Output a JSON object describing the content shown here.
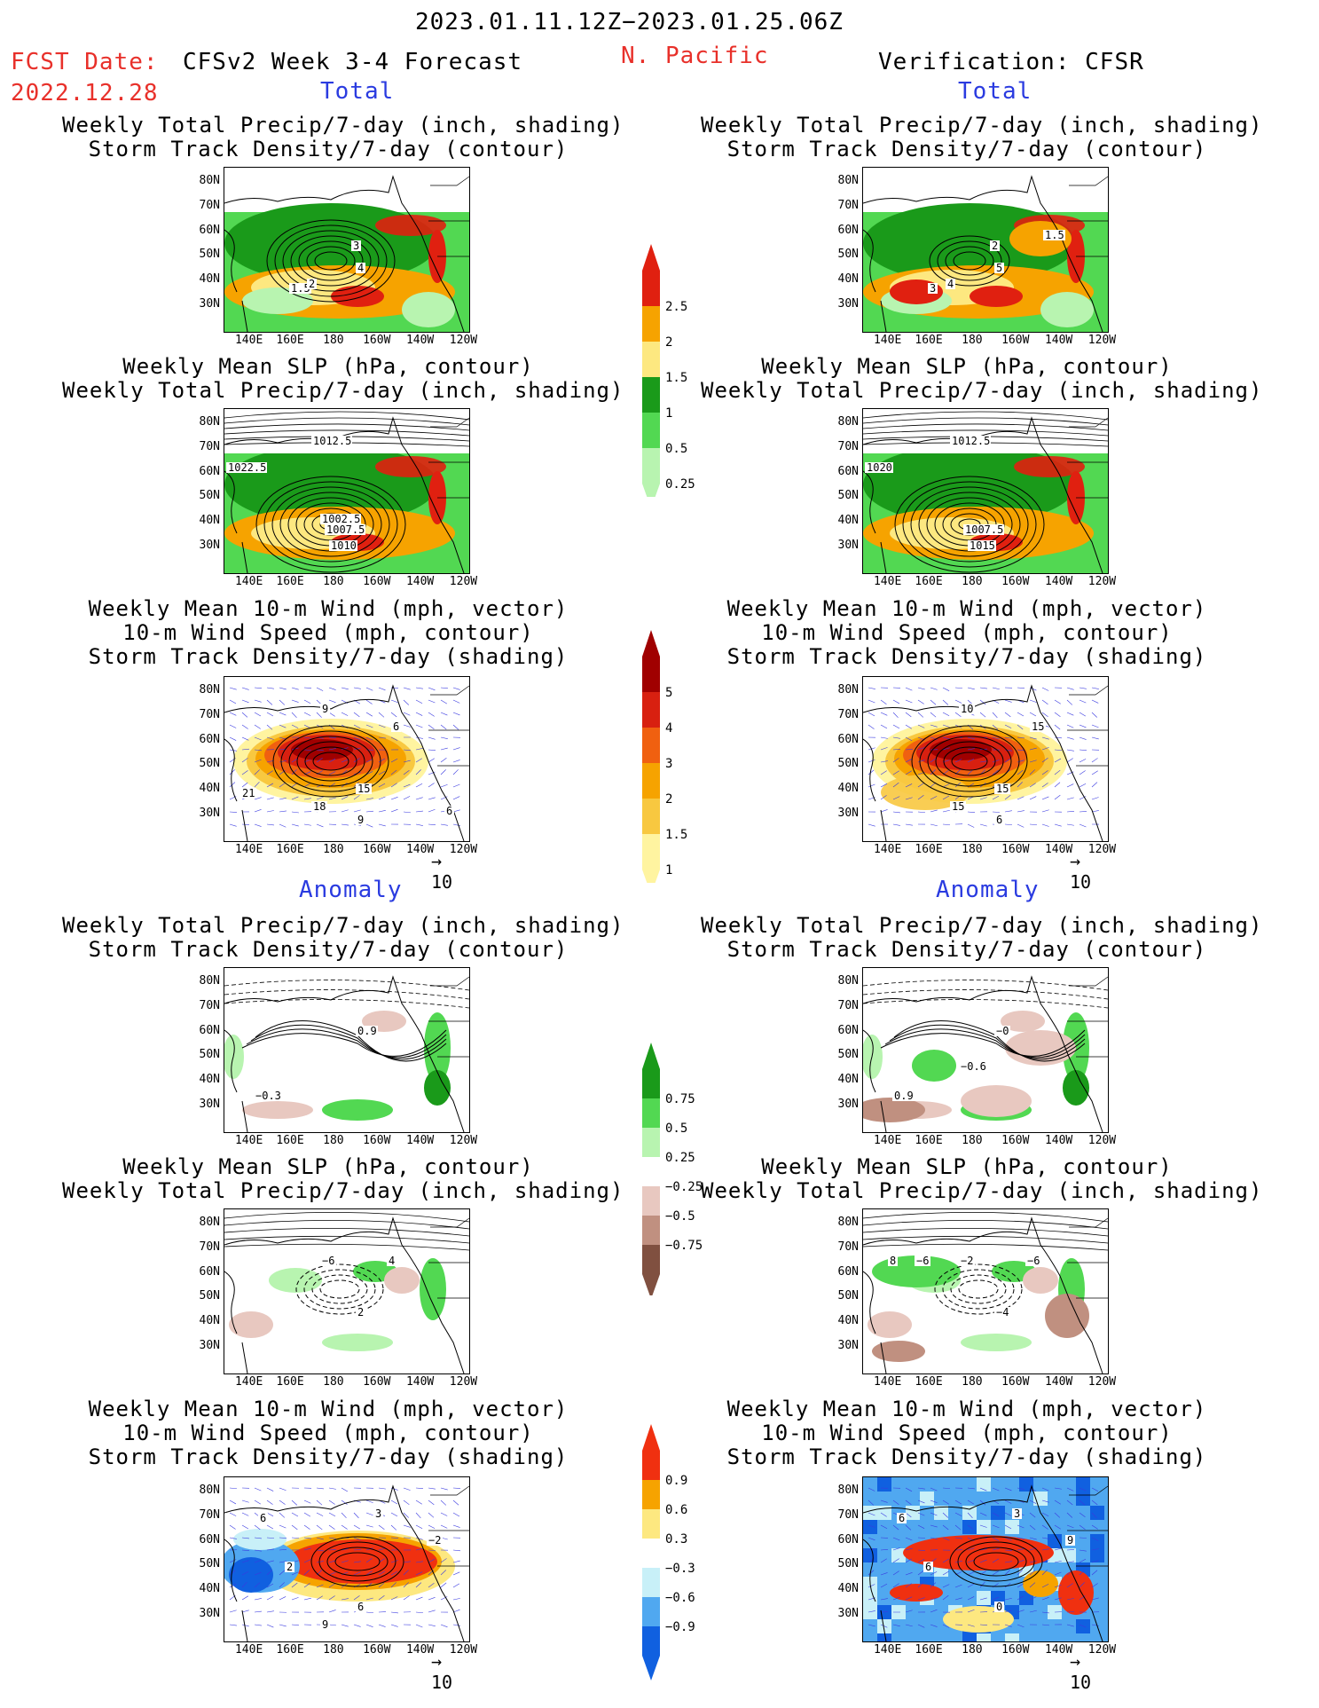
{
  "header": {
    "date_range": "2023.01.11.12Z−2023.01.25.06Z",
    "region": "N. Pacific",
    "fcst_label": "FCST Date:",
    "fcst_date": "2022.12.28",
    "model": "CFSv2 Week 3-4 Forecast",
    "verification": "Verification: CFSR"
  },
  "sections": {
    "total": "Total",
    "anomaly": "Anomaly"
  },
  "titles": {
    "precip_storm": [
      "Weekly Total Precip/7-day (inch, shading)",
      "Storm Track Density/7-day (contour)"
    ],
    "slp_precip": [
      "Weekly Mean SLP (hPa, contour)",
      "Weekly Total Precip/7-day (inch, shading)"
    ],
    "wind_storm": [
      "Weekly Mean 10-m Wind (mph, vector)",
      "10-m Wind Speed (mph, contour)",
      "Storm Track Density/7-day (shading)"
    ]
  },
  "axes": {
    "lat_labels": [
      "80N",
      "70N",
      "60N",
      "50N",
      "40N",
      "30N"
    ],
    "lon_labels": [
      "140E",
      "160E",
      "180",
      "160W",
      "140W",
      "120W"
    ]
  },
  "vector_ref": "10",
  "colorbars": {
    "precip_total": {
      "labels": [
        "2.5",
        "2",
        "1.5",
        "1",
        "0.5",
        "0.25"
      ],
      "colors": [
        "#e02010",
        "#f6a300",
        "#fde880",
        "#1a9a1a",
        "#52d852",
        "#b8f4b0"
      ]
    },
    "storm_total": {
      "labels": [
        "5",
        "4",
        "3",
        "2",
        "1.5",
        "1"
      ],
      "colors": [
        "#a00000",
        "#d82010",
        "#f06010",
        "#f6a300",
        "#f8c840",
        "#fff4a0"
      ]
    },
    "precip_anom": {
      "labels": [
        "0.75",
        "0.5",
        "0.25",
        "−0.25",
        "−0.5",
        "−0.75"
      ],
      "colors": [
        "#1a9a1a",
        "#52d852",
        "#b8f4b0",
        "#ffffff",
        "#e8c8c0",
        "#c09080",
        "#805040"
      ]
    },
    "storm_anom": {
      "labels": [
        "0.9",
        "0.6",
        "0.3",
        "−0.3",
        "−0.6",
        "−0.9"
      ],
      "colors": [
        "#f03010",
        "#f6a300",
        "#fde880",
        "#ffffff",
        "#c8f0f8",
        "#50a8f0",
        "#1060e0"
      ]
    }
  },
  "contour_labels": {
    "p1": [
      "4",
      "3",
      "1.5",
      "2"
    ],
    "p2": [
      "1012.5",
      "1022.5",
      "1007.5",
      "1010",
      "1002.5"
    ],
    "p3": [
      "9",
      "6",
      "15",
      "18",
      "9",
      "6",
      "21"
    ],
    "p4": [
      "0.9",
      "−0.3"
    ],
    "p5": [
      "4",
      "−6",
      "2"
    ],
    "p6": [
      "6",
      "3",
      "2",
      "−2",
      "6",
      "9"
    ],
    "v1": [
      "5",
      "2",
      "3",
      "4",
      "1.5"
    ],
    "v2": [
      "1012.5",
      "1020",
      "1007.5",
      "1015"
    ],
    "v3": [
      "10",
      "15",
      "15",
      "15",
      "6"
    ],
    "v4": [
      "−0",
      "0.9",
      "−0.6"
    ],
    "v5": [
      "−6",
      "−2",
      "−4",
      "8",
      "−6"
    ],
    "v6": [
      "6",
      "3",
      "6",
      "9",
      "0"
    ]
  }
}
